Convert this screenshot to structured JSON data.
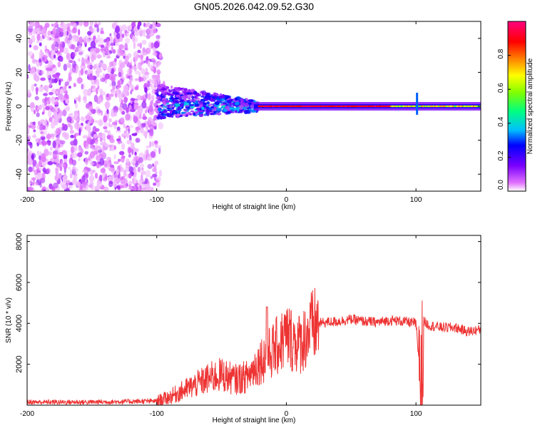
{
  "title": "GN05.2026.042.09.52.G30",
  "chart_data": [
    {
      "type": "heatmap",
      "title": "GN05.2026.042.09.52.G30",
      "xlabel": "Height of straight line (km)",
      "ylabel": "Frequency (Hz)",
      "xlim": [
        -200,
        150
      ],
      "ylim": [
        -50,
        50
      ],
      "x_ticks": [
        "-200",
        "-100",
        "0",
        "100"
      ],
      "y_ticks": [
        "-40",
        "-20",
        "0",
        "20",
        "40"
      ],
      "colorbar": {
        "label": "Normalized spectral amplitude",
        "range": [
          0.0,
          1.0
        ],
        "ticks": [
          "0.0",
          "0.2",
          "0.4",
          "0.6",
          "0.8"
        ],
        "colormap": [
          "#ffffff",
          "#e070ff",
          "#7a00ff",
          "#0000ff",
          "#00c0ff",
          "#00ff80",
          "#80ff00",
          "#ffff00",
          "#ff8000",
          "#ff0000",
          "#ff0080"
        ]
      },
      "regions": [
        {
          "x_range": [
            -200,
            -100
          ],
          "description_level": "noise",
          "amplitude": [
            0.05,
            0.2
          ]
        },
        {
          "x_range": [
            -100,
            -25
          ],
          "center_freq": 3,
          "amplitude": [
            0.2,
            0.5
          ]
        },
        {
          "x_range": [
            -25,
            150
          ],
          "center_freq": 0,
          "amplitude": [
            0.8,
            1.0
          ]
        }
      ]
    },
    {
      "type": "line",
      "xlabel": "Height of straight line (km)",
      "ylabel": "SNR (10 * v/v)",
      "xlim": [
        -200,
        150
      ],
      "ylim": [
        0,
        8300
      ],
      "x_ticks": [
        "-200",
        "-100",
        "0",
        "100"
      ],
      "y_ticks": [
        "2000",
        "4000",
        "6000",
        "8000"
      ],
      "series": [
        {
          "name": "SNR",
          "color": "#ee3333",
          "x": [
            -200,
            -150,
            -100,
            -90,
            -80,
            -70,
            -60,
            -50,
            -40,
            -30,
            -20,
            -15,
            -10,
            -5,
            0,
            5,
            10,
            15,
            20,
            25,
            30,
            40,
            50,
            60,
            70,
            80,
            90,
            100,
            104,
            106,
            110,
            120,
            130,
            140,
            150
          ],
          "values": [
            150,
            150,
            200,
            400,
            700,
            1000,
            1300,
            1500,
            1250,
            1400,
            2200,
            2400,
            2700,
            3000,
            3400,
            3200,
            3000,
            3400,
            3800,
            4000,
            4050,
            4100,
            4200,
            4100,
            4050,
            4150,
            4100,
            4000,
            500,
            4100,
            3900,
            3800,
            3800,
            3600,
            3700
          ]
        }
      ]
    }
  ]
}
